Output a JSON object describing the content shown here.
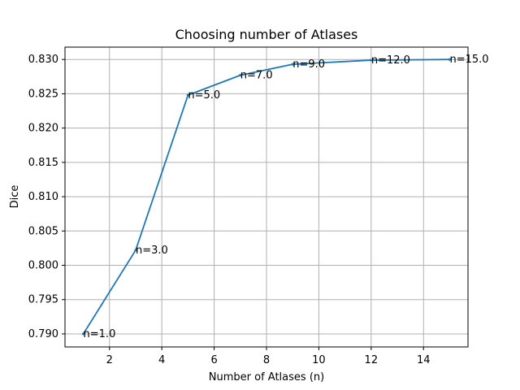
{
  "chart_data": {
    "type": "line",
    "title": "Choosing number of Atlases",
    "xlabel": "Number of Atlases (n)",
    "ylabel": "Dice",
    "xlim": [
      0.3,
      15.7
    ],
    "ylim": [
      0.7881,
      0.8318
    ],
    "xticks": [
      2,
      4,
      6,
      8,
      10,
      12,
      14
    ],
    "xtick_labels": [
      "2",
      "4",
      "6",
      "8",
      "10",
      "12",
      "14"
    ],
    "yticks": [
      0.79,
      0.795,
      0.8,
      0.805,
      0.81,
      0.815,
      0.82,
      0.825,
      0.83
    ],
    "ytick_labels": [
      "0.790",
      "0.795",
      "0.800",
      "0.805",
      "0.810",
      "0.815",
      "0.820",
      "0.825",
      "0.830"
    ],
    "grid": true,
    "line_color": "#1f77b4",
    "series": [
      {
        "x": [
          1,
          3,
          5,
          7,
          9,
          12,
          15
        ],
        "y": [
          0.79,
          0.8022,
          0.8248,
          0.8277,
          0.8293,
          0.8299,
          0.83
        ],
        "annotations": [
          "n=1.0",
          "n=3.0",
          "n=5.0",
          "n=7.0",
          "n=9.0",
          "n=12.0",
          "n=15.0"
        ]
      }
    ]
  }
}
